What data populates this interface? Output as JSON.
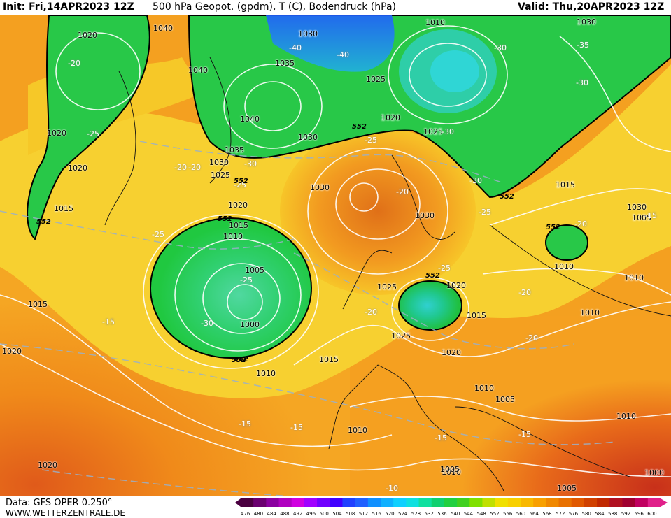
{
  "header": {
    "init": "Init: Fri,14APR2023 12Z",
    "title": "500 hPa Geopot. (gpdm), T (C), Bodendruck (hPa)",
    "valid": "Valid: Thu,20APR2023 12Z"
  },
  "footer": {
    "data_source": "Data: GFS OPER 0.250°",
    "website": "WWW.WETTERZENTRALE.DE"
  },
  "colorbar": {
    "ticks": [
      "476",
      "480",
      "484",
      "488",
      "492",
      "496",
      "500",
      "504",
      "508",
      "512",
      "516",
      "520",
      "524",
      "528",
      "532",
      "536",
      "540",
      "544",
      "548",
      "552",
      "556",
      "560",
      "564",
      "568",
      "572",
      "576",
      "580",
      "584",
      "588",
      "592",
      "596",
      "600"
    ],
    "colors": [
      "#4a0040",
      "#6a0070",
      "#8a00a0",
      "#b000c0",
      "#d000e0",
      "#a000ff",
      "#7000ff",
      "#4000ff",
      "#2040ff",
      "#2060ff",
      "#1090ff",
      "#10b0ff",
      "#10d0ff",
      "#10e0e0",
      "#10e0a0",
      "#10d070",
      "#20d040",
      "#40d020",
      "#80e000",
      "#c0e000",
      "#f0e000",
      "#f8d000",
      "#f8b800",
      "#f8a000",
      "#f08800",
      "#e87000",
      "#e05800",
      "#d04000",
      "#c02800",
      "#b01020",
      "#a00030",
      "#c00060",
      "#e0208a"
    ]
  },
  "map_labels": {
    "pressure": [
      "1020",
      "1040",
      "1030",
      "1010",
      "1030",
      "1035",
      "1040",
      "1025",
      "1020",
      "1025",
      "1040",
      "1030",
      "1020",
      "1030",
      "1020",
      "1025",
      "1035",
      "1030",
      "1025",
      "1030",
      "1020",
      "1015",
      "1020",
      "1015",
      "1010",
      "1005",
      "1000",
      "1030",
      "1025",
      "1020",
      "1015",
      "1010",
      "1010",
      "1010",
      "1015",
      "1015",
      "1005",
      "1010",
      "1010",
      "1005",
      "1010",
      "1020",
      "1015",
      "1010",
      "1010",
      "1005",
      "1000",
      "1005",
      "1020"
    ],
    "temperature": [
      "-20",
      "-25",
      "-20",
      "-20",
      "-25",
      "-30",
      "-40",
      "-40",
      "-25",
      "-30",
      "-30",
      "-35",
      "-30",
      "-25",
      "-20",
      "-30",
      "-25",
      "-20",
      "-25",
      "-30",
      "-25",
      "-20",
      "-20",
      "-15",
      "-15",
      "-15",
      "-15",
      "-15",
      "-15",
      "-10",
      "-20"
    ],
    "geopotential": [
      "552",
      "552",
      "552",
      "552",
      "552",
      "552",
      "552",
      "552",
      "552"
    ]
  }
}
